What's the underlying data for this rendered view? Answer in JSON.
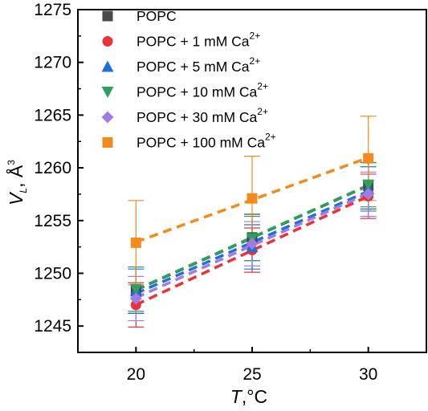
{
  "chart_data": {
    "type": "scatter",
    "x": [
      20,
      25,
      30
    ],
    "xlim": [
      17.5,
      32.5
    ],
    "ylim": [
      1242.5,
      1275
    ],
    "xticks": [
      20,
      25,
      30
    ],
    "yticks": [
      1245,
      1250,
      1255,
      1260,
      1265,
      1270,
      1275
    ],
    "xlabel": {
      "var": "T",
      "rest": ",°C"
    },
    "ylabel": {
      "var": "V",
      "sub": "L",
      "rest": ", Å",
      "sup": "3"
    },
    "grid": false,
    "legend_position": "top-left",
    "series": [
      {
        "name": "POPC",
        "ion_sup": "",
        "marker": "square",
        "color": "#4a4a4a",
        "values": [
          1248.4,
          1253.4,
          1258.3
        ],
        "errors": [
          2.2,
          2.2,
          2.2
        ]
      },
      {
        "name": "POPC + 1 mM Ca",
        "ion_sup": "2+",
        "marker": "circle",
        "color": "#e8333b",
        "values": [
          1247.0,
          1252.2,
          1257.3
        ],
        "errors": [
          2.1,
          2.1,
          2.1
        ]
      },
      {
        "name": "POPC + 5 mM Ca",
        "ion_sup": "2+",
        "marker": "triangle-up",
        "color": "#1f6fe0",
        "values": [
          1248.3,
          1252.5,
          1258.0
        ],
        "errors": [
          2.1,
          2.1,
          2.1
        ]
      },
      {
        "name": "POPC + 10 mM Ca",
        "ion_sup": "2+",
        "marker": "triangle-down",
        "color": "#2f9e5e",
        "values": [
          1248.5,
          1253.3,
          1258.4
        ],
        "errors": [
          2.1,
          2.1,
          2.1
        ]
      },
      {
        "name": "POPC + 30 mM Ca",
        "ion_sup": "2+",
        "marker": "diamond",
        "color": "#a07de0",
        "values": [
          1247.6,
          1252.8,
          1257.5
        ],
        "errors": [
          2.1,
          2.1,
          2.1
        ]
      },
      {
        "name": "POPC + 100 mM Ca",
        "ion_sup": "2+",
        "marker": "square",
        "color": "#f28a1c",
        "values": [
          1252.9,
          1257.1,
          1260.9
        ],
        "errors": [
          4.0,
          4.0,
          4.0
        ]
      }
    ]
  }
}
